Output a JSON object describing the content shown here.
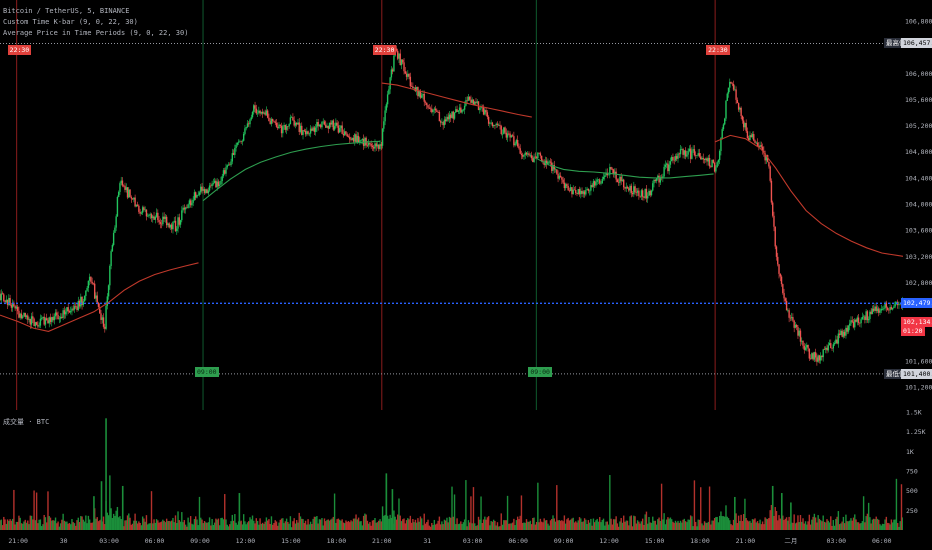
{
  "legend": {
    "line1": "Bitcoin / TetherUS, 5, BINANCE",
    "line2": "Custom Time K-bar (9, 0, 22, 30)",
    "line3": "Average Price in Time Periods (9, 0, 22, 30)"
  },
  "volume_legend": "成交量 · BTC",
  "colors": {
    "background": "#000000",
    "up": "#26a69a",
    "up_candle": "#22c55e",
    "down": "#ef5350",
    "ma_green": "#2e9e4f",
    "ma_red": "#c0392b",
    "price_line": "#2962ff",
    "high_line": "#9598a1",
    "low_line": "#9598a1",
    "sep_red": "#8b1d1d",
    "sep_green": "#0f5a2e"
  },
  "markers": {
    "high_label": "最高價",
    "low_label": "最低價",
    "high_value": "106,457.44",
    "low_value": "101,400.01",
    "current_price": "102,479.56",
    "bar_close": "102,134.06",
    "countdown": "01:20"
  },
  "chart_data": {
    "type": "candlestick",
    "symbol": "Bitcoin / TetherUS",
    "interval": "5",
    "exchange": "BINANCE",
    "y_ticks": [
      "106,800.00",
      "106,000.00",
      "105,600.00",
      "105,200.00",
      "104,800.00",
      "104,400.00",
      "104,000.00",
      "103,600.00",
      "103,200.00",
      "102,800.00",
      "101,600.00",
      "101,200.00"
    ],
    "y_tick_values": [
      106800,
      106000,
      105600,
      105200,
      104800,
      104400,
      104000,
      103600,
      103200,
      102800,
      101600,
      101200
    ],
    "ylim": [
      101000,
      107000
    ],
    "x_ticks": [
      "21:00",
      "30",
      "03:00",
      "06:00",
      "09:00",
      "12:00",
      "15:00",
      "18:00",
      "21:00",
      "31",
      "03:00",
      "06:00",
      "09:00",
      "12:00",
      "15:00",
      "18:00",
      "21:00",
      "二月",
      "03:00",
      "06:00"
    ],
    "x_tick_hours": [
      0,
      3,
      6,
      9,
      12,
      15,
      18,
      21,
      24,
      27,
      30,
      33,
      36,
      39,
      42,
      45,
      48,
      51,
      54,
      57
    ],
    "x_span_hours": [
      -1.2,
      58.4
    ],
    "volume_ticks": [
      "1.5K",
      "1.25K",
      "1K",
      "750",
      "500",
      "250"
    ],
    "volume_tick_values": [
      1500,
      1250,
      1000,
      750,
      500,
      250
    ],
    "volume_max": 1500,
    "session_separators_red_hours": [
      -0.1,
      24.0,
      46.0
    ],
    "session_separators_green_hours": [
      12.2,
      34.2
    ],
    "session_tags": [
      {
        "hour": -0.1,
        "text": "22:30",
        "kind": "red"
      },
      {
        "hour": 24.0,
        "text": "22:30",
        "kind": "red"
      },
      {
        "hour": 46.0,
        "text": "22:30",
        "kind": "red"
      },
      {
        "hour": 12.2,
        "text": "09:00",
        "kind": "green"
      },
      {
        "hour": 34.2,
        "text": "09:00",
        "kind": "green"
      }
    ],
    "price_path": [
      [
        -1.2,
        102620
      ],
      [
        -0.5,
        102500
      ],
      [
        0.3,
        102280
      ],
      [
        1.2,
        102180
      ],
      [
        2.2,
        102250
      ],
      [
        3.0,
        102330
      ],
      [
        3.8,
        102420
      ],
      [
        4.4,
        102550
      ],
      [
        4.9,
        102870
      ],
      [
        5.4,
        102350
      ],
      [
        5.8,
        102150
      ],
      [
        6.2,
        103200
      ],
      [
        6.8,
        104350
      ],
      [
        7.5,
        104100
      ],
      [
        8.2,
        103900
      ],
      [
        9.0,
        103800
      ],
      [
        9.8,
        103750
      ],
      [
        10.5,
        103650
      ],
      [
        11.2,
        104000
      ],
      [
        12.2,
        104200
      ],
      [
        13.2,
        104300
      ],
      [
        14.0,
        104600
      ],
      [
        14.8,
        105000
      ],
      [
        15.6,
        105450
      ],
      [
        16.5,
        105350
      ],
      [
        17.4,
        105150
      ],
      [
        18.2,
        105300
      ],
      [
        19.0,
        105050
      ],
      [
        20.0,
        105250
      ],
      [
        21.0,
        105200
      ],
      [
        22.0,
        105050
      ],
      [
        23.0,
        104950
      ],
      [
        24.0,
        104850
      ],
      [
        24.5,
        105700
      ],
      [
        25.0,
        106350
      ],
      [
        25.4,
        106150
      ],
      [
        26.0,
        105800
      ],
      [
        26.8,
        105650
      ],
      [
        27.5,
        105400
      ],
      [
        28.2,
        105250
      ],
      [
        29.0,
        105400
      ],
      [
        29.8,
        105600
      ],
      [
        30.6,
        105500
      ],
      [
        31.4,
        105200
      ],
      [
        32.2,
        105100
      ],
      [
        33.0,
        104900
      ],
      [
        33.8,
        104700
      ],
      [
        34.5,
        104750
      ],
      [
        35.3,
        104550
      ],
      [
        36.0,
        104300
      ],
      [
        36.8,
        104150
      ],
      [
        37.6,
        104200
      ],
      [
        38.4,
        104350
      ],
      [
        39.2,
        104550
      ],
      [
        40.0,
        104300
      ],
      [
        40.8,
        104200
      ],
      [
        41.6,
        104150
      ],
      [
        42.4,
        104400
      ],
      [
        43.2,
        104650
      ],
      [
        44.0,
        104800
      ],
      [
        44.8,
        104750
      ],
      [
        45.6,
        104650
      ],
      [
        46.2,
        104550
      ],
      [
        46.7,
        105350
      ],
      [
        47.1,
        105950
      ],
      [
        47.6,
        105500
      ],
      [
        48.2,
        105050
      ],
      [
        48.9,
        104950
      ],
      [
        49.6,
        104650
      ],
      [
        50.1,
        103250
      ],
      [
        50.6,
        102500
      ],
      [
        51.1,
        102250
      ],
      [
        51.7,
        101950
      ],
      [
        52.3,
        101700
      ],
      [
        52.9,
        101650
      ],
      [
        53.5,
        101800
      ],
      [
        54.2,
        101950
      ],
      [
        55.0,
        102150
      ],
      [
        55.8,
        102250
      ],
      [
        56.6,
        102350
      ],
      [
        57.5,
        102450
      ],
      [
        58.4,
        102500
      ]
    ],
    "avg_lines": [
      {
        "color": "red",
        "points": [
          [
            -1.2,
            102300
          ],
          [
            0,
            102200
          ],
          [
            1,
            102100
          ],
          [
            2,
            102050
          ],
          [
            3,
            102150
          ],
          [
            4,
            102250
          ],
          [
            5,
            102350
          ],
          [
            6,
            102500
          ],
          [
            7,
            102680
          ],
          [
            8,
            102820
          ],
          [
            9,
            102920
          ],
          [
            10,
            102990
          ],
          [
            11,
            103050
          ],
          [
            11.9,
            103100
          ]
        ]
      },
      {
        "color": "green",
        "points": [
          [
            12.2,
            104050
          ],
          [
            13,
            104200
          ],
          [
            14,
            104380
          ],
          [
            15,
            104530
          ],
          [
            16,
            104640
          ],
          [
            17,
            104720
          ],
          [
            18,
            104790
          ],
          [
            19,
            104840
          ],
          [
            20,
            104880
          ],
          [
            21,
            104910
          ],
          [
            22,
            104930
          ],
          [
            23,
            104950
          ],
          [
            23.9,
            104960
          ]
        ]
      },
      {
        "color": "red",
        "points": [
          [
            24.0,
            105850
          ],
          [
            25,
            105820
          ],
          [
            26,
            105760
          ],
          [
            27,
            105700
          ],
          [
            28,
            105640
          ],
          [
            29,
            105580
          ],
          [
            30,
            105520
          ],
          [
            31,
            105470
          ],
          [
            32,
            105420
          ],
          [
            33,
            105370
          ],
          [
            33.9,
            105330
          ]
        ]
      },
      {
        "color": "green",
        "points": [
          [
            34.2,
            104700
          ],
          [
            35,
            104600
          ],
          [
            36,
            104530
          ],
          [
            37,
            104500
          ],
          [
            38,
            104490
          ],
          [
            39,
            104470
          ],
          [
            40,
            104440
          ],
          [
            41,
            104410
          ],
          [
            42,
            104400
          ],
          [
            43,
            104400
          ],
          [
            44,
            104420
          ],
          [
            45,
            104440
          ],
          [
            45.9,
            104460
          ]
        ]
      },
      {
        "color": "red",
        "points": [
          [
            46.0,
            104950
          ],
          [
            47,
            105050
          ],
          [
            48,
            105000
          ],
          [
            49,
            104850
          ],
          [
            50,
            104550
          ],
          [
            51,
            104200
          ],
          [
            52,
            103900
          ],
          [
            53,
            103700
          ],
          [
            54,
            103550
          ],
          [
            55,
            103430
          ],
          [
            56,
            103330
          ],
          [
            57,
            103250
          ],
          [
            58.4,
            103200
          ]
        ]
      }
    ]
  }
}
